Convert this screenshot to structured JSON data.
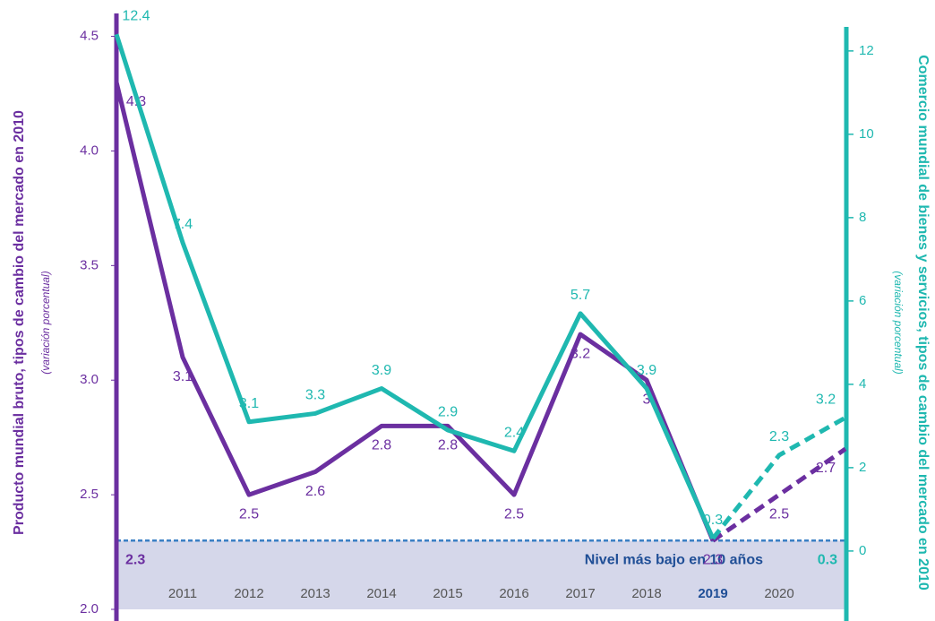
{
  "chart_data": {
    "type": "line",
    "y_label": "Producto mundial bruto, tipos de cambio del mercado en 2010",
    "y_sublabel": "(variación porcentual)",
    "y2_label": "Comercio mundial de bienes y servicios, tipos de cambio del mercado en 2010",
    "y2_sublabel": "(variación porcentual)",
    "categories": [
      null,
      "2011",
      "2012",
      "2013",
      "2014",
      "2015",
      "2016",
      "2017",
      "2018",
      "2019",
      "2020",
      null
    ],
    "series": [
      {
        "name": "Producto mundial bruto",
        "color": "#6b2fa0",
        "values": [
          4.3,
          3.1,
          2.5,
          2.6,
          2.8,
          2.8,
          2.5,
          3.2,
          3.0,
          2.3,
          2.5,
          2.7
        ],
        "dash_from": 9
      },
      {
        "name": "Comercio mundial",
        "color": "#1fb8b0",
        "axis": "y2",
        "values": [
          12.4,
          7.4,
          3.1,
          3.3,
          3.9,
          2.9,
          2.4,
          5.7,
          3.9,
          0.3,
          2.3,
          3.2
        ],
        "dash_from": 9
      }
    ],
    "ylim": [
      2.0,
      4.6
    ],
    "yticks": [
      {
        "value": 2,
        "label": "2.0"
      },
      2.5,
      {
        "value": 3,
        "label": "3.0"
      },
      3.5,
      {
        "value": 4,
        "label": "4.0"
      },
      4.5
    ],
    "y2lim": [
      -1.4,
      12.9
    ],
    "y2ticks": [
      0,
      2,
      4,
      6,
      8,
      10,
      12
    ],
    "low": {
      "text": "Nivel más bajo en 10 años",
      "value": 2.3,
      "y2_value": 0.3
    }
  }
}
